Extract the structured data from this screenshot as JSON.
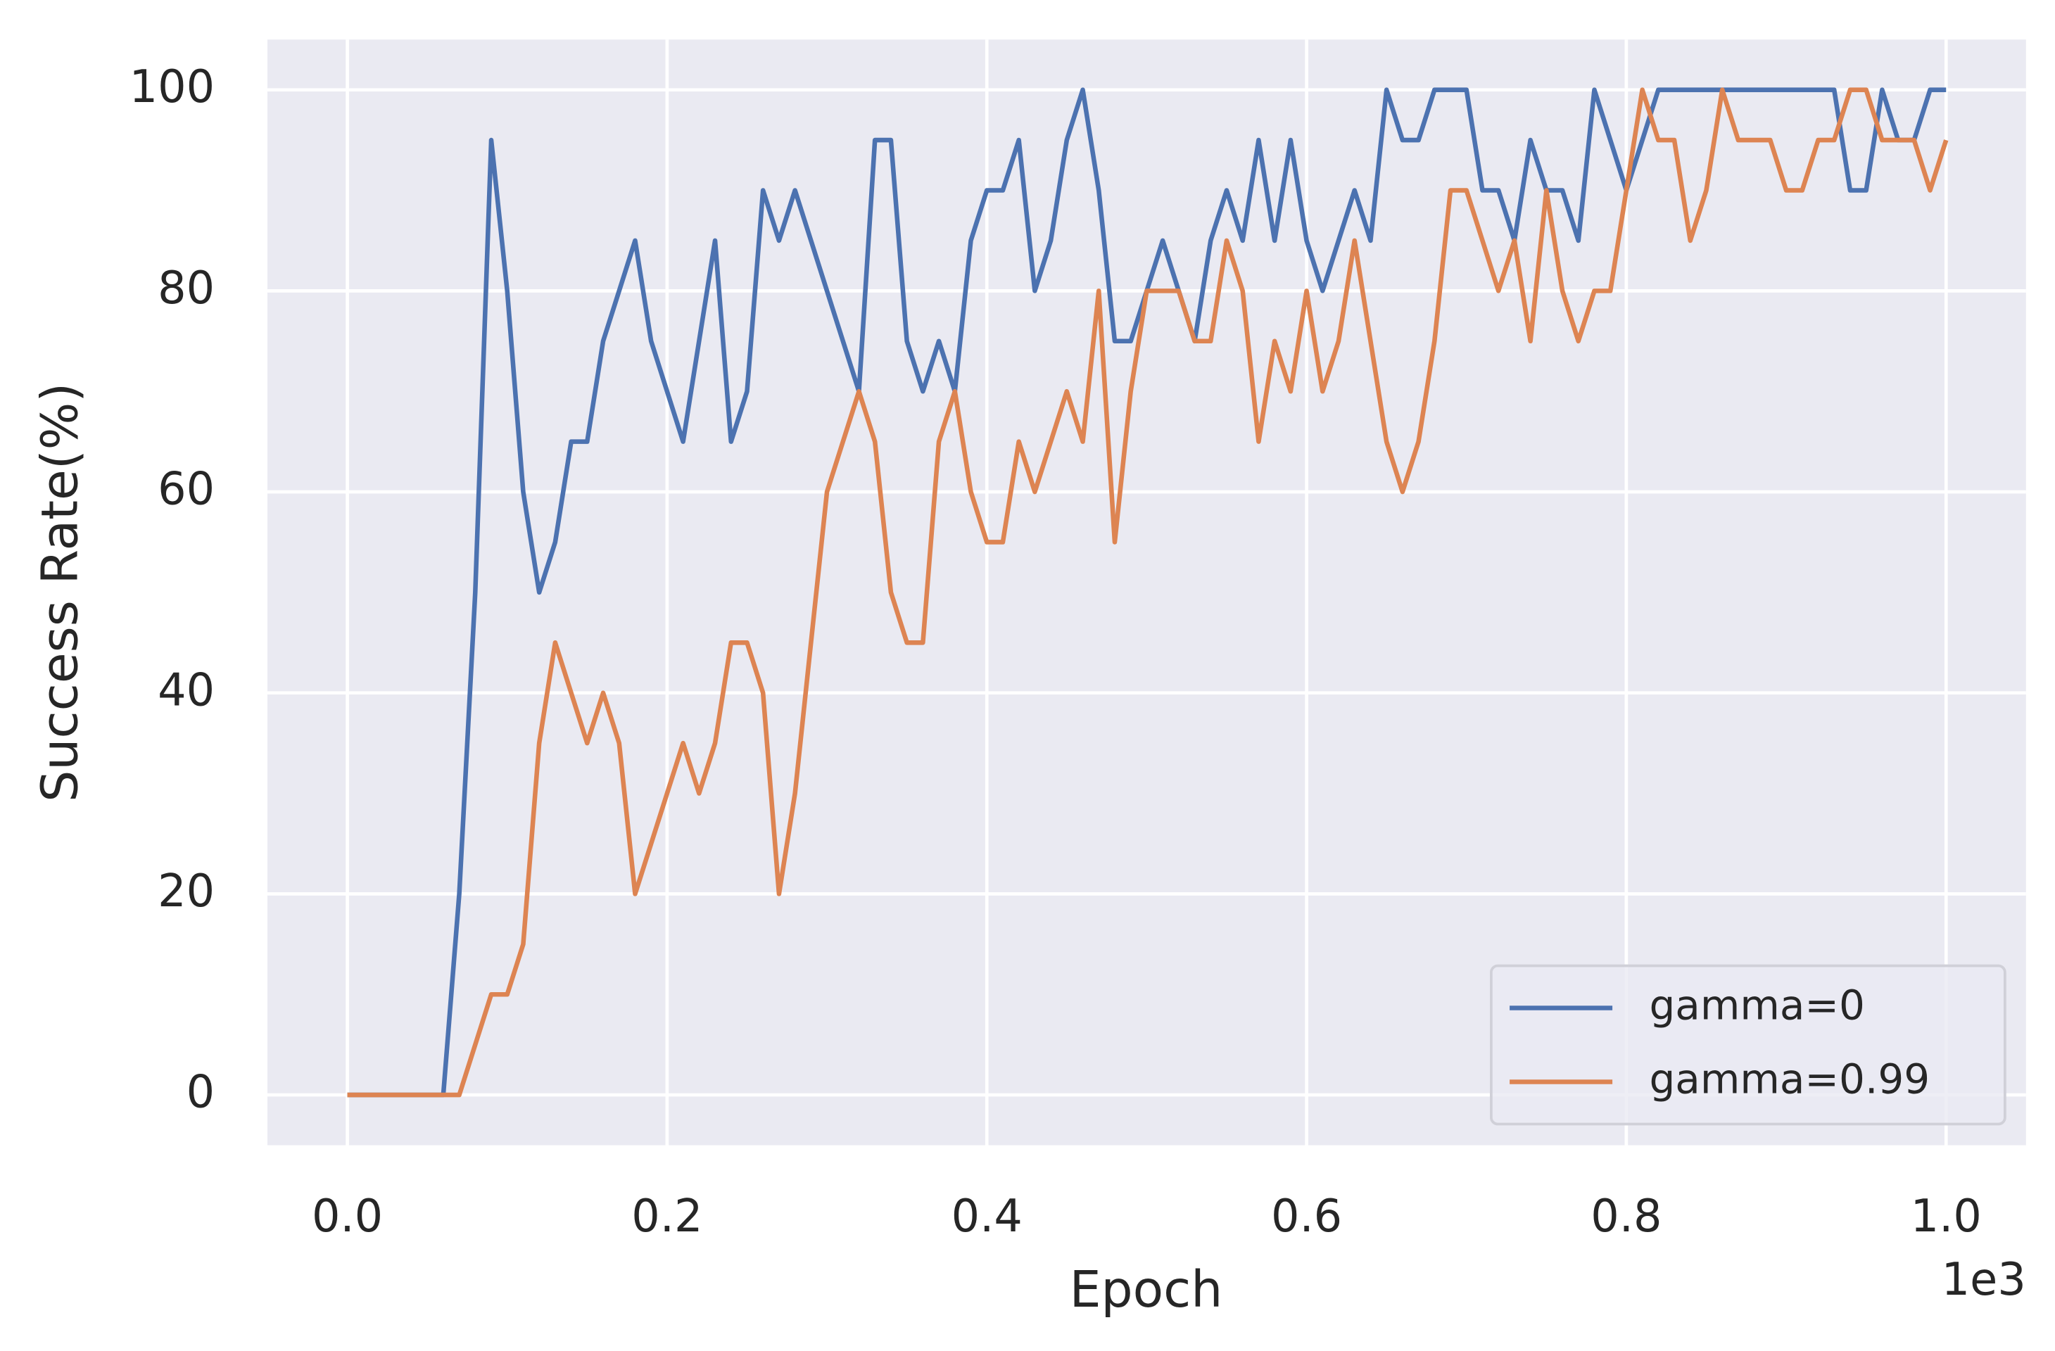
{
  "chart_data": {
    "type": "line",
    "xlabel": "Epoch",
    "ylabel": "Success Rate(%)",
    "x_offset_label": "1e3",
    "x": [
      0,
      10,
      20,
      30,
      40,
      50,
      60,
      70,
      80,
      90,
      100,
      110,
      120,
      130,
      140,
      150,
      160,
      170,
      180,
      190,
      200,
      210,
      220,
      230,
      240,
      250,
      260,
      270,
      280,
      290,
      300,
      310,
      320,
      330,
      340,
      350,
      360,
      370,
      380,
      390,
      400,
      410,
      420,
      430,
      440,
      450,
      460,
      470,
      480,
      490,
      500,
      510,
      520,
      530,
      540,
      550,
      560,
      570,
      580,
      590,
      600,
      610,
      620,
      630,
      640,
      650,
      660,
      670,
      680,
      690,
      700,
      710,
      720,
      730,
      740,
      750,
      760,
      770,
      780,
      790,
      800,
      810,
      820,
      830,
      840,
      850,
      860,
      870,
      880,
      890,
      900,
      910,
      920,
      930,
      940,
      950,
      960,
      970,
      980,
      990,
      1000
    ],
    "series": [
      {
        "name": "gamma=0",
        "color": "#4c72b0",
        "values": [
          0,
          0,
          0,
          0,
          0,
          0,
          0,
          20,
          50,
          95,
          80,
          60,
          50,
          55,
          65,
          65,
          75,
          80,
          85,
          75,
          70,
          65,
          75,
          85,
          65,
          70,
          90,
          85,
          90,
          85,
          80,
          75,
          70,
          95,
          95,
          75,
          70,
          75,
          70,
          85,
          90,
          90,
          95,
          80,
          85,
          95,
          100,
          90,
          75,
          75,
          80,
          85,
          80,
          75,
          85,
          90,
          85,
          95,
          85,
          95,
          85,
          80,
          85,
          90,
          85,
          100,
          95,
          95,
          100,
          100,
          100,
          90,
          90,
          85,
          95,
          90,
          90,
          85,
          100,
          95,
          90,
          95,
          100,
          100,
          100,
          100,
          100,
          100,
          100,
          100,
          100,
          100,
          100,
          100,
          90,
          90,
          100,
          95,
          95,
          100,
          100
        ]
      },
      {
        "name": "gamma=0.99",
        "color": "#dd8452",
        "values": [
          0,
          0,
          0,
          0,
          0,
          0,
          0,
          0,
          5,
          10,
          10,
          15,
          35,
          45,
          40,
          35,
          40,
          35,
          20,
          25,
          30,
          35,
          30,
          35,
          45,
          45,
          40,
          20,
          30,
          45,
          60,
          65,
          70,
          65,
          50,
          45,
          45,
          65,
          70,
          60,
          55,
          55,
          65,
          60,
          65,
          70,
          65,
          80,
          55,
          70,
          80,
          80,
          80,
          75,
          75,
          85,
          80,
          65,
          75,
          70,
          80,
          70,
          75,
          85,
          75,
          65,
          60,
          65,
          75,
          90,
          90,
          85,
          80,
          85,
          75,
          90,
          80,
          75,
          80,
          80,
          90,
          100,
          95,
          95,
          85,
          90,
          100,
          95,
          95,
          95,
          90,
          90,
          95,
          95,
          100,
          100,
          95,
          95,
          95,
          90,
          95
        ]
      }
    ],
    "xlim": [
      -50,
      1050
    ],
    "ylim": [
      -5,
      105
    ],
    "xticks": [
      {
        "value": 0,
        "label": "0.0"
      },
      {
        "value": 200,
        "label": "0.2"
      },
      {
        "value": 400,
        "label": "0.4"
      },
      {
        "value": 600,
        "label": "0.6"
      },
      {
        "value": 800,
        "label": "0.8"
      },
      {
        "value": 1000,
        "label": "1.0"
      }
    ],
    "yticks": [
      0,
      20,
      40,
      60,
      80,
      100
    ],
    "grid": true,
    "legend": "lower right"
  }
}
